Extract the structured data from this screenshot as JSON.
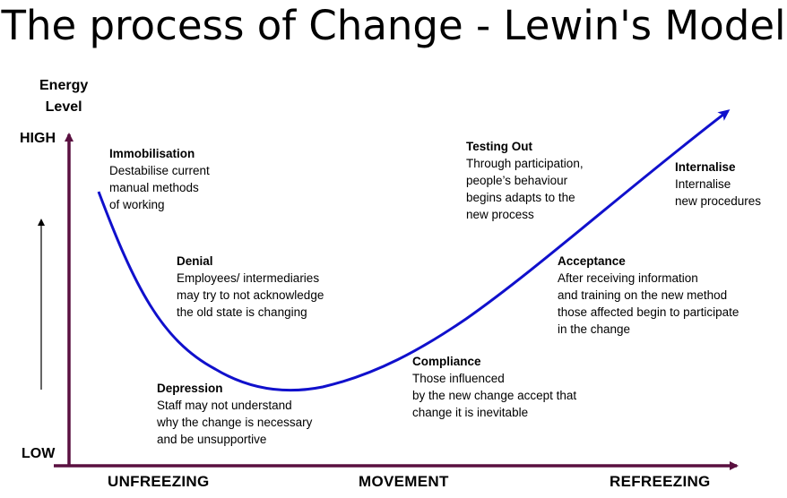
{
  "title": "The process of Change - Lewin's Model",
  "y_axis": {
    "label_line1": "Energy",
    "label_line2": "Level",
    "high": "HIGH",
    "low": "LOW"
  },
  "phases": [
    "UNFREEZING",
    "MOVEMENT",
    "REFREEZING"
  ],
  "colors": {
    "axis": "#5a1040",
    "curve": "#1010cc",
    "text": "#000000"
  },
  "stages": {
    "immobilisation": {
      "title": "Immobilisation",
      "lines": [
        "Destabilise current",
        "manual methods",
        "of working"
      ]
    },
    "denial": {
      "title": "Denial",
      "lines": [
        "Employees/ intermediaries",
        "may try to not acknowledge",
        "the old state is changing"
      ]
    },
    "depression": {
      "title": "Depression",
      "lines": [
        "Staff may not understand",
        "why the change is necessary",
        "and be unsupportive"
      ]
    },
    "compliance": {
      "title": "Compliance",
      "lines": [
        "Those influenced",
        "by the new change accept that",
        "change it is inevitable"
      ]
    },
    "testing_out": {
      "title": "Testing Out",
      "lines": [
        "Through participation,",
        "people’s behaviour",
        "begins adapts to the",
        "new  process"
      ]
    },
    "acceptance": {
      "title": "Acceptance",
      "lines": [
        "After receiving information",
        "and training on the new method",
        "those affected begin to participate",
        "in the change"
      ]
    },
    "internalise": {
      "title": "Internalise",
      "lines": [
        "Internalise",
        "new procedures"
      ]
    }
  }
}
